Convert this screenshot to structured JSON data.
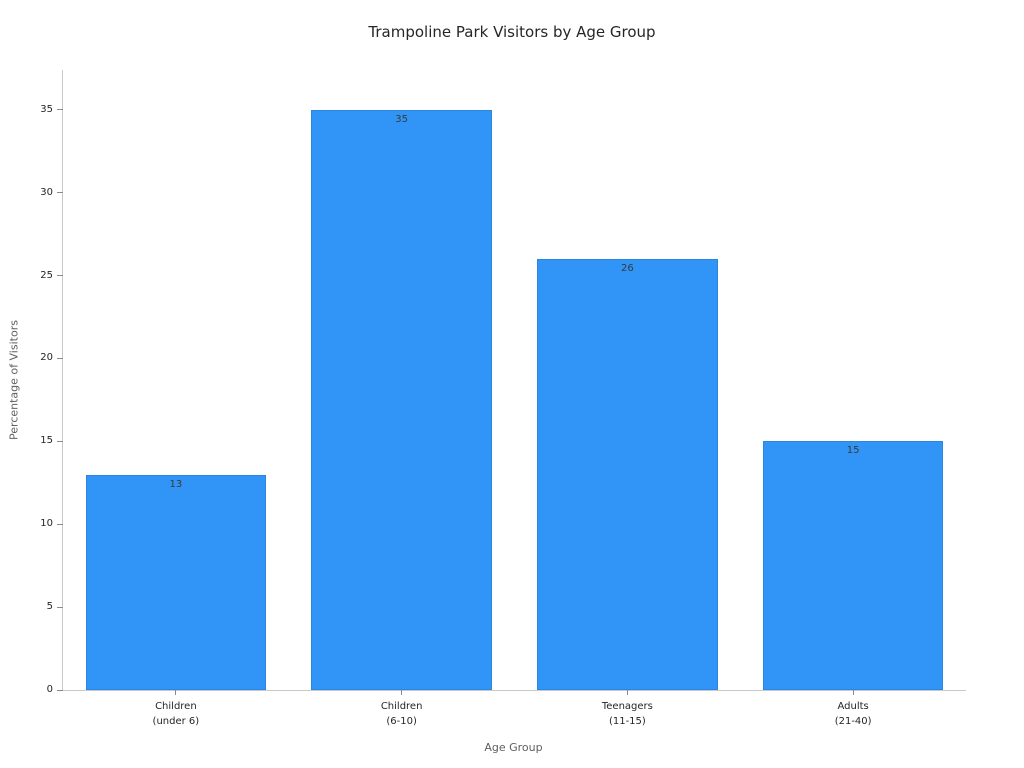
{
  "chart_data": {
    "type": "bar",
    "title": "Trampoline Park Visitors by Age Group",
    "xlabel": "Age Group",
    "ylabel": "Percentage of Visitors",
    "categories": [
      {
        "label": "Children",
        "sublabel": "(under 6)"
      },
      {
        "label": "Children",
        "sublabel": "(6-10)"
      },
      {
        "label": "Teenagers",
        "sublabel": "(11-15)"
      },
      {
        "label": "Adults",
        "sublabel": "(21-40)"
      }
    ],
    "values": [
      13,
      35,
      26,
      15
    ],
    "yticks": [
      0,
      5,
      10,
      15,
      20,
      25,
      30,
      35
    ],
    "ylim": [
      0,
      37.4
    ],
    "grid": "off",
    "legend": "off",
    "colors": {
      "bar_fill": "#3095f6",
      "bar_edge": "#2a86de",
      "value_label": "#3a3a3a",
      "axis_line": "#c9c9c9",
      "tick_mark": "#8a8a8a",
      "tick_label": "#262626",
      "axis_title": "#5f5f5f",
      "title": "#262626"
    }
  }
}
